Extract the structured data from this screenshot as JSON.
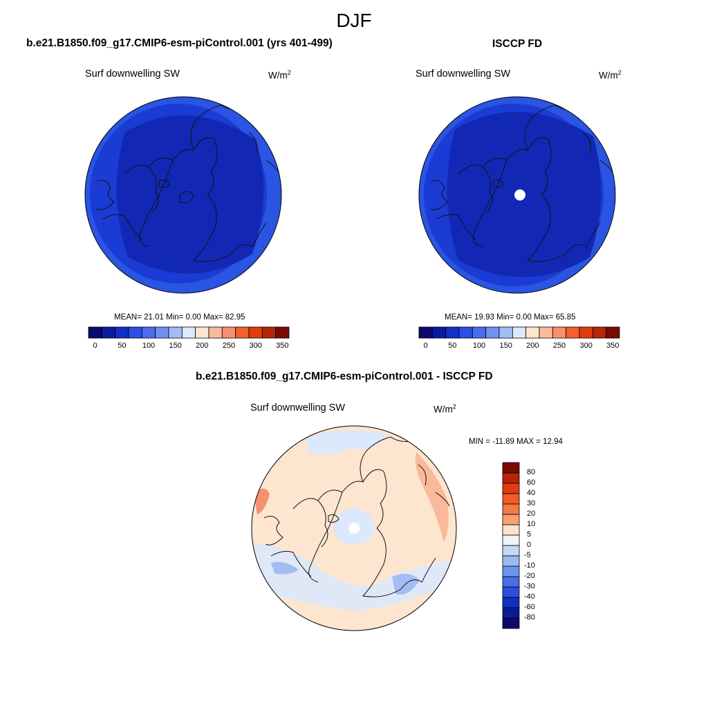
{
  "title": "DJF",
  "panels": [
    {
      "case_title": "b.e21.B1850.f09_g17.CMIP6-esm-piControl.001 (yrs 401-499)",
      "variable": "Surf downwelling SW",
      "units_base": "W/m",
      "units_exp": "2",
      "stats": "MEAN=  21.01  Min=    0.00  Max=  82.95"
    },
    {
      "case_title": "ISCCP FD",
      "variable": "Surf downwelling SW",
      "units_base": "W/m",
      "units_exp": "2",
      "stats": "MEAN=  19.93  Min=    0.00  Max=  65.85"
    }
  ],
  "diff_panel": {
    "case_title": "b.e21.B1850.f09_g17.CMIP6-esm-piControl.001 - ISCCP FD",
    "variable": "Surf downwelling SW",
    "units_base": "W/m",
    "units_exp": "2",
    "stats": "MIN = -11.89 MAX =  12.94"
  },
  "colorbar_main": {
    "colors": [
      "#0a0a6e",
      "#0d1aa0",
      "#1030c8",
      "#2a4ee6",
      "#4a6cf0",
      "#7090f2",
      "#a4bcf4",
      "#dce8fb",
      "#fde5cf",
      "#f9b99a",
      "#f79070",
      "#f26030",
      "#e03c10",
      "#b82408",
      "#7a0a00"
    ],
    "labels": [
      "0",
      "50",
      "100",
      "150",
      "200",
      "250",
      "300",
      "350"
    ]
  },
  "colorbar_diff": {
    "colors": [
      "#7a0a00",
      "#b82408",
      "#e03c10",
      "#f55a25",
      "#f47a45",
      "#f7a070",
      "#fde2cc",
      "#eef3fb",
      "#c6d8f8",
      "#9cb8f4",
      "#6e94f0",
      "#4a6ce8",
      "#2a4ee0",
      "#1030c0",
      "#0d1a98",
      "#0a0a6e"
    ],
    "labels": [
      "80",
      "60",
      "40",
      "30",
      "20",
      "10",
      "5",
      "0",
      "-5",
      "-10",
      "-20",
      "-30",
      "-40",
      "-60",
      "-80"
    ]
  }
}
